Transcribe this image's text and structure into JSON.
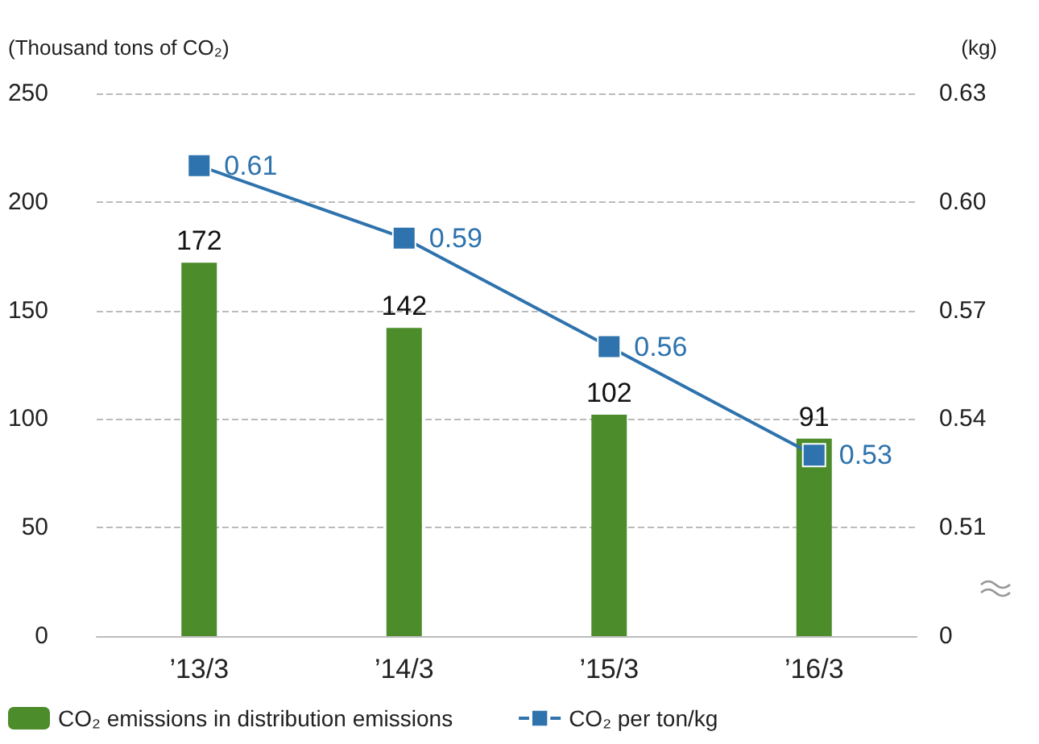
{
  "chart_data": {
    "type": "bar",
    "categories": [
      "’13/3",
      "’14/3",
      "’15/3",
      "’16/3"
    ],
    "ylabel": "(Thousand tons of CO₂)",
    "y2label": "(kg)",
    "series": [
      {
        "name": "CO₂ emissions in distribution emissions",
        "color": "#4c8c2b",
        "values": [
          172,
          142,
          102,
          91
        ]
      },
      {
        "name": "CO₂ per ton/kg",
        "type": "line",
        "axis": "y2",
        "color": "#2e73ad",
        "values": [
          0.61,
          0.59,
          0.56,
          0.53
        ]
      }
    ],
    "ylim": [
      0,
      250
    ],
    "yticks": [
      0,
      50,
      100,
      150,
      200,
      250
    ],
    "y2lim": [
      0.48,
      0.63
    ],
    "y2ticks": [
      {
        "value": 0.48,
        "label": "0"
      },
      0.51,
      0.54,
      0.57,
      {
        "value": 0.6,
        "label": "0.60"
      },
      0.63
    ],
    "data_labels": true,
    "grid": "y",
    "legend": "bottom",
    "marker": "square",
    "line_style": "solid"
  }
}
